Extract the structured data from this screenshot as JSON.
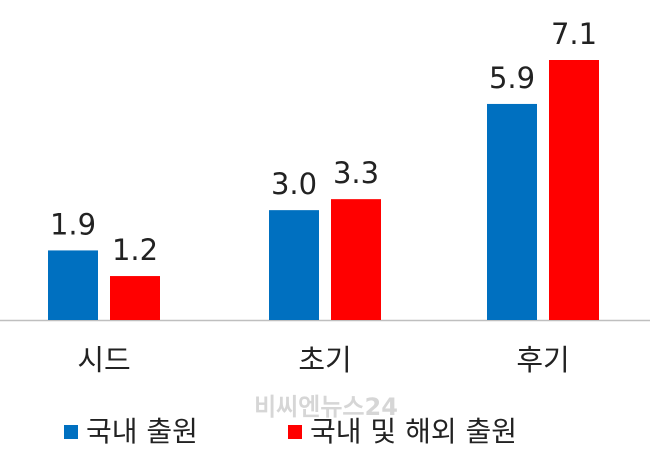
{
  "chart_data": {
    "type": "bar",
    "categories": [
      "시드",
      "초기",
      "후기"
    ],
    "series": [
      {
        "name": "국내 출원",
        "color": "#0070c0",
        "values": [
          1.9,
          3.0,
          5.9
        ],
        "value_labels": [
          "1.9",
          "3.0",
          "5.9"
        ]
      },
      {
        "name": "국내 및 해외 출원",
        "color": "#ff0000",
        "values": [
          1.2,
          3.3,
          7.1
        ],
        "value_labels": [
          "1.2",
          "3.3",
          "7.1"
        ]
      }
    ],
    "legend": "bottom",
    "watermark": "비씨엔뉴스24"
  }
}
